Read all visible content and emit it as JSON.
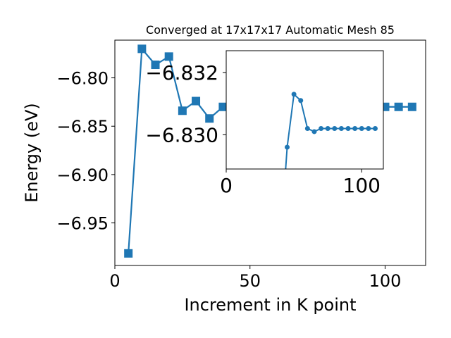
{
  "chart_data": [
    {
      "type": "line",
      "title": "Converged at 17x17x17 Automatic Mesh 85",
      "xlabel": "Increment in K point",
      "ylabel": "Energy (eV)",
      "xlim": [
        0,
        115
      ],
      "ylim": [
        -6.994,
        -6.761
      ],
      "xticks": [
        0,
        50,
        100
      ],
      "xtick_labels": [
        "0",
        "50",
        "100"
      ],
      "yticks": [
        -6.95,
        -6.9,
        -6.85,
        -6.8
      ],
      "ytick_labels": [
        "−6.95",
        "−6.90",
        "−6.85",
        "−6.80"
      ],
      "marker": "square",
      "color": "#1f77b4",
      "grid": false,
      "x": [
        5,
        10,
        15,
        20,
        25,
        30,
        35,
        40,
        100,
        105,
        110
      ],
      "y": [
        -6.9815,
        -6.77,
        -6.7865,
        -6.778,
        -6.834,
        -6.824,
        -6.842,
        -6.83,
        -6.83,
        -6.83,
        -6.83
      ]
    },
    {
      "type": "line",
      "title": "",
      "xlabel": "",
      "ylabel": "",
      "xlim": [
        0,
        116
      ],
      "ylim": [
        -6.8289,
        -6.8327
      ],
      "xticks": [
        0,
        100
      ],
      "xtick_labels": [
        "0",
        "100"
      ],
      "yticks": [
        -6.832,
        -6.83
      ],
      "ytick_labels": [
        "−6.832",
        "−6.830"
      ],
      "marker": "circle",
      "color": "#1f77b4",
      "grid": false,
      "x": [
        40,
        45,
        50,
        55,
        60,
        65,
        70,
        75,
        80,
        85,
        90,
        95,
        100,
        105,
        110
      ],
      "y": [
        -6.8265,
        -6.8296,
        -6.8313,
        -6.8311,
        -6.8302,
        -6.8301,
        -6.8302,
        -6.8302,
        -6.8302,
        -6.8302,
        -6.8302,
        -6.8302,
        -6.8302,
        -6.8302,
        -6.8302
      ]
    }
  ]
}
